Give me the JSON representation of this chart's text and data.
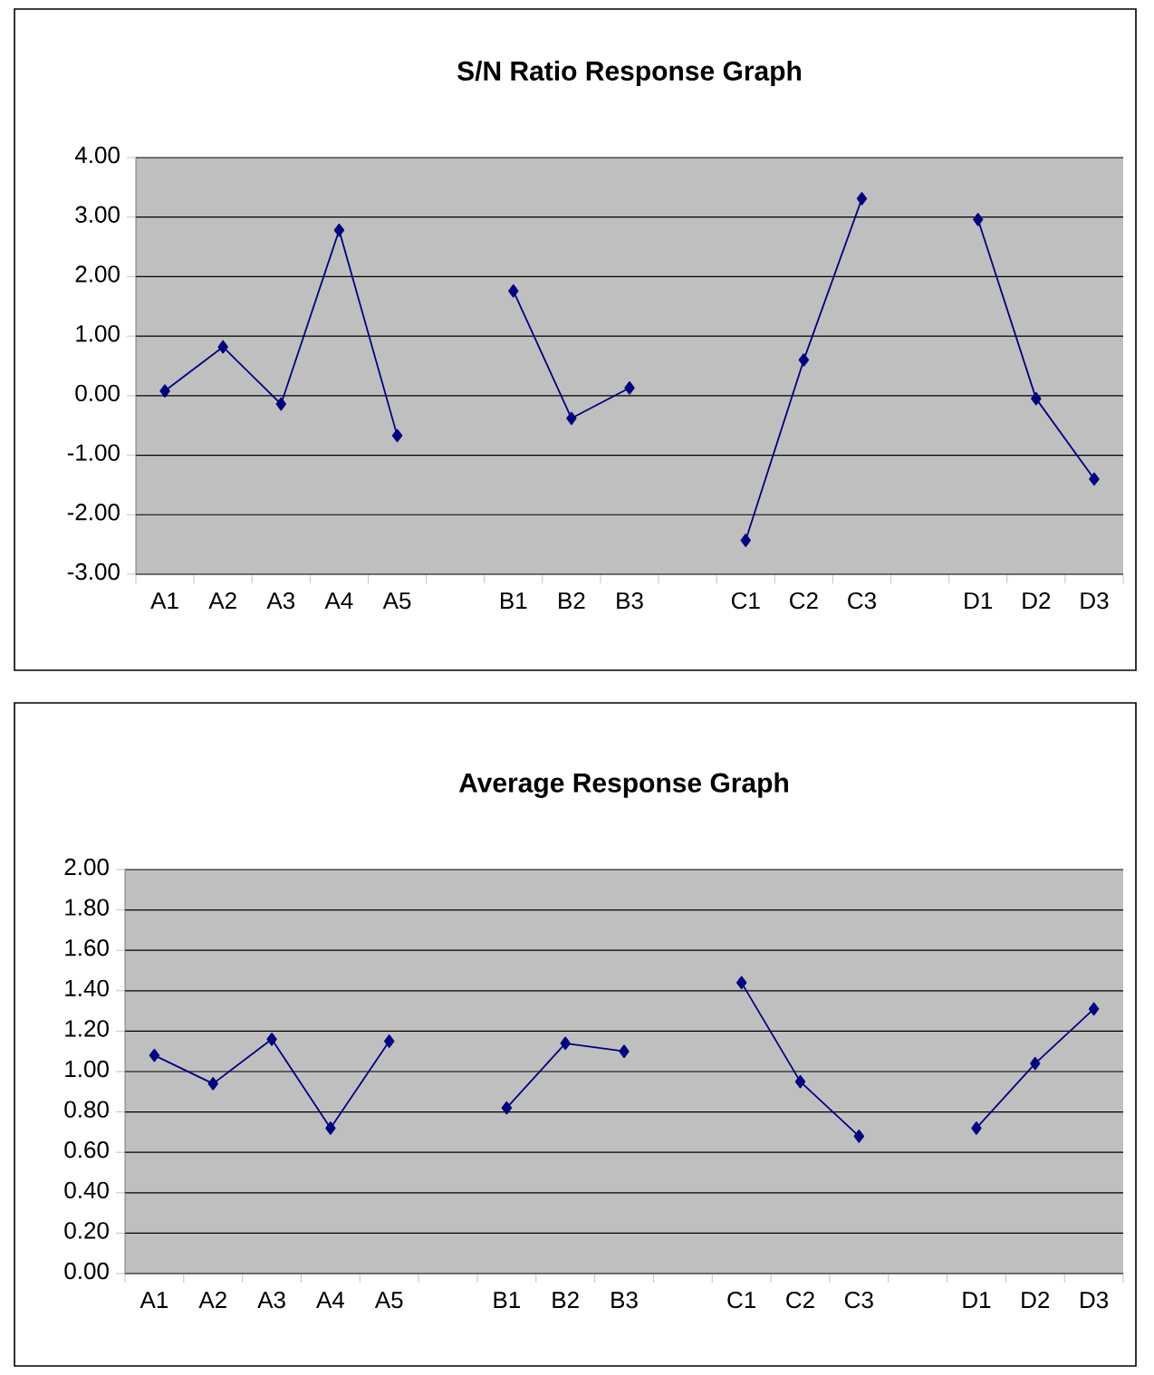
{
  "chart_data": [
    {
      "type": "line",
      "title": "S/N Ratio Response Graph",
      "categories": [
        "A1",
        "A2",
        "A3",
        "A4",
        "A5",
        null,
        "B1",
        "B2",
        "B3",
        null,
        "C1",
        "C2",
        "C3",
        null,
        "D1",
        "D2",
        "D3"
      ],
      "series": [
        {
          "color": "#000080",
          "values": [
            0.08,
            0.82,
            -0.14,
            2.78,
            -0.67,
            null,
            1.76,
            -0.38,
            0.13,
            null,
            -2.43,
            0.6,
            3.31,
            null,
            2.96,
            -0.05,
            -1.4
          ]
        }
      ],
      "ylim": [
        -3,
        4
      ],
      "yticks": [
        {
          "value": -3,
          "label": "-3.00"
        },
        {
          "value": -2,
          "label": "-2.00"
        },
        {
          "value": -1,
          "label": "-1.00"
        },
        {
          "value": 0,
          "label": "0.00"
        },
        {
          "value": 1,
          "label": "1.00"
        },
        {
          "value": 2,
          "label": "2.00"
        },
        {
          "value": 3,
          "label": "3.00"
        },
        {
          "value": 4,
          "label": "4.00"
        }
      ],
      "grid": "y",
      "marker": "diamond",
      "line_style": "solid"
    },
    {
      "type": "line",
      "title": "Average Response Graph",
      "categories": [
        "A1",
        "A2",
        "A3",
        "A4",
        "A5",
        null,
        "B1",
        "B2",
        "B3",
        null,
        "C1",
        "C2",
        "C3",
        null,
        "D1",
        "D2",
        "D3"
      ],
      "series": [
        {
          "color": "#000080",
          "values": [
            1.08,
            0.94,
            1.16,
            0.72,
            1.15,
            null,
            0.82,
            1.14,
            1.1,
            null,
            1.44,
            0.95,
            0.68,
            null,
            0.72,
            1.04,
            1.31
          ]
        }
      ],
      "ylim": [
        0,
        2
      ],
      "yticks": [
        {
          "value": 0,
          "label": "0.00"
        },
        {
          "value": 0.2,
          "label": "0.20"
        },
        {
          "value": 0.4,
          "label": "0.40"
        },
        {
          "value": 0.6,
          "label": "0.60"
        },
        {
          "value": 0.8,
          "label": "0.80"
        },
        {
          "value": 1,
          "label": "1.00"
        },
        {
          "value": 1.2,
          "label": "1.20"
        },
        {
          "value": 1.4,
          "label": "1.40"
        },
        {
          "value": 1.6,
          "label": "1.60"
        },
        {
          "value": 1.8,
          "label": "1.80"
        },
        {
          "value": 2,
          "label": "2.00"
        }
      ],
      "grid": "y",
      "marker": "diamond",
      "line_style": "solid"
    }
  ]
}
